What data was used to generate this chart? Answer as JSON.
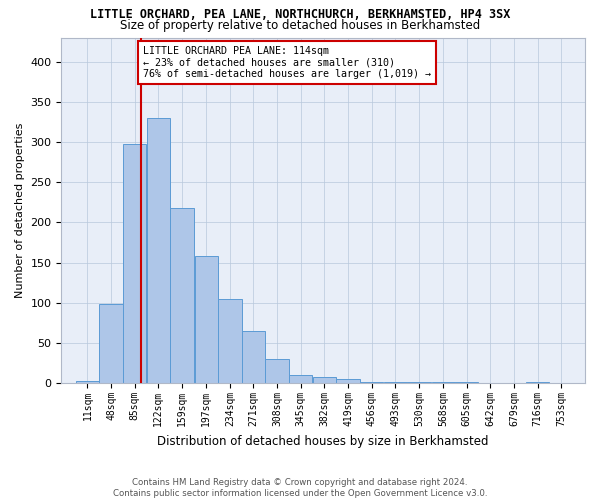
{
  "title1": "LITTLE ORCHARD, PEA LANE, NORTHCHURCH, BERKHAMSTED, HP4 3SX",
  "title2": "Size of property relative to detached houses in Berkhamsted",
  "xlabel": "Distribution of detached houses by size in Berkhamsted",
  "ylabel": "Number of detached properties",
  "bin_labels": [
    "11sqm",
    "48sqm",
    "85sqm",
    "122sqm",
    "159sqm",
    "197sqm",
    "234sqm",
    "271sqm",
    "308sqm",
    "345sqm",
    "382sqm",
    "419sqm",
    "456sqm",
    "493sqm",
    "530sqm",
    "568sqm",
    "605sqm",
    "642sqm",
    "679sqm",
    "716sqm",
    "753sqm"
  ],
  "bin_edges": [
    11,
    48,
    85,
    122,
    159,
    197,
    234,
    271,
    308,
    345,
    382,
    419,
    456,
    493,
    530,
    568,
    605,
    642,
    679,
    716,
    753
  ],
  "bar_heights": [
    3,
    98,
    298,
    330,
    218,
    158,
    105,
    65,
    30,
    10,
    8,
    5,
    2,
    2,
    2,
    2,
    1,
    0,
    0,
    2
  ],
  "bar_color": "#aec6e8",
  "bar_edge_color": "#5b9bd5",
  "property_size": 114,
  "vline_color": "#cc0000",
  "annotation_line1": "LITTLE ORCHARD PEA LANE: 114sqm",
  "annotation_line2": "← 23% of detached houses are smaller (310)",
  "annotation_line3": "76% of semi-detached houses are larger (1,019) →",
  "annotation_box_color": "#ffffff",
  "annotation_box_edge_color": "#cc0000",
  "ylim": [
    0,
    430
  ],
  "yticks": [
    0,
    50,
    100,
    150,
    200,
    250,
    300,
    350,
    400
  ],
  "footer_text": "Contains HM Land Registry data © Crown copyright and database right 2024.\nContains public sector information licensed under the Open Government Licence v3.0.",
  "background_color": "#e8eef8"
}
